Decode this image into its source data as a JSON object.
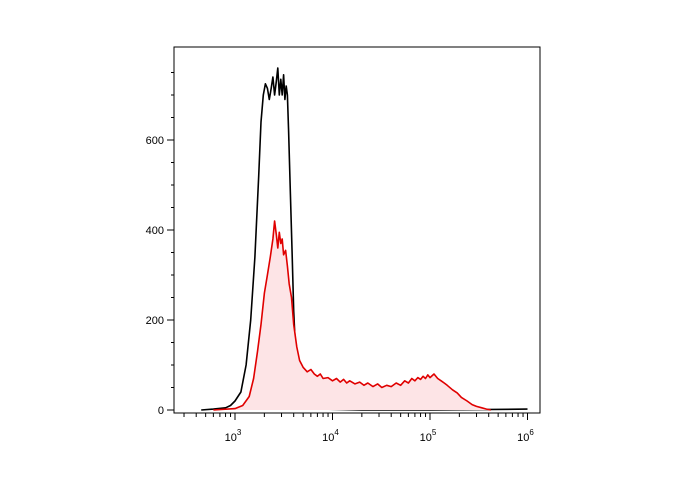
{
  "chart_data": {
    "type": "area",
    "title": "",
    "xlabel": "",
    "ylabel": "",
    "x_scale": "log",
    "xlim": [
      300,
      1500000
    ],
    "ylim": [
      0,
      760
    ],
    "grid": false,
    "y_ticks": [
      {
        "value": 0,
        "label": "0"
      },
      {
        "value": 200,
        "label": "200"
      },
      {
        "value": 400,
        "label": "400"
      },
      {
        "value": 600,
        "label": "600"
      }
    ],
    "x_ticks": [
      {
        "value": 1000,
        "base": "10",
        "exp": "3"
      },
      {
        "value": 10000,
        "base": "10",
        "exp": "4"
      },
      {
        "value": 100000,
        "base": "10",
        "exp": "5"
      },
      {
        "value": 1000000,
        "base": "10",
        "exp": "6"
      }
    ],
    "series": [
      {
        "color": "#000000",
        "fill": "none",
        "points": [
          [
            450,
            0
          ],
          [
            600,
            2
          ],
          [
            800,
            5
          ],
          [
            900,
            10
          ],
          [
            1000,
            20
          ],
          [
            1150,
            40
          ],
          [
            1300,
            100
          ],
          [
            1450,
            200
          ],
          [
            1600,
            340
          ],
          [
            1750,
            520
          ],
          [
            1850,
            640
          ],
          [
            1950,
            700
          ],
          [
            2050,
            725
          ],
          [
            2150,
            715
          ],
          [
            2250,
            690
          ],
          [
            2350,
            715
          ],
          [
            2450,
            740
          ],
          [
            2550,
            700
          ],
          [
            2650,
            730
          ],
          [
            2750,
            760
          ],
          [
            2850,
            700
          ],
          [
            2950,
            735
          ],
          [
            3050,
            700
          ],
          [
            3150,
            745
          ],
          [
            3250,
            690
          ],
          [
            3350,
            720
          ],
          [
            3450,
            700
          ],
          [
            3550,
            620
          ],
          [
            3700,
            480
          ],
          [
            3850,
            350
          ],
          [
            4000,
            220
          ],
          [
            4200,
            120
          ],
          [
            4500,
            60
          ],
          [
            4800,
            25
          ],
          [
            5200,
            10
          ],
          [
            6000,
            4
          ],
          [
            8000,
            2
          ],
          [
            20000,
            0
          ],
          [
            100000,
            0
          ],
          [
            1000000,
            2
          ]
        ]
      },
      {
        "color": "#e00000",
        "fill": "#fde4e6",
        "points": [
          [
            600,
            0
          ],
          [
            1000,
            3
          ],
          [
            1200,
            10
          ],
          [
            1400,
            30
          ],
          [
            1550,
            70
          ],
          [
            1700,
            130
          ],
          [
            1850,
            190
          ],
          [
            2000,
            260
          ],
          [
            2150,
            300
          ],
          [
            2300,
            340
          ],
          [
            2450,
            380
          ],
          [
            2550,
            420
          ],
          [
            2650,
            390
          ],
          [
            2750,
            360
          ],
          [
            2850,
            395
          ],
          [
            2950,
            370
          ],
          [
            3050,
            380
          ],
          [
            3150,
            345
          ],
          [
            3300,
            355
          ],
          [
            3450,
            320
          ],
          [
            3600,
            280
          ],
          [
            3800,
            250
          ],
          [
            4000,
            190
          ],
          [
            4300,
            140
          ],
          [
            4600,
            110
          ],
          [
            5000,
            95
          ],
          [
            5500,
            85
          ],
          [
            6000,
            90
          ],
          [
            6500,
            80
          ],
          [
            7000,
            75
          ],
          [
            7500,
            80
          ],
          [
            8000,
            70
          ],
          [
            9000,
            72
          ],
          [
            10000,
            65
          ],
          [
            11000,
            70
          ],
          [
            12000,
            62
          ],
          [
            13000,
            68
          ],
          [
            14000,
            60
          ],
          [
            15000,
            65
          ],
          [
            17000,
            58
          ],
          [
            19000,
            62
          ],
          [
            21000,
            55
          ],
          [
            23000,
            60
          ],
          [
            26000,
            52
          ],
          [
            29000,
            58
          ],
          [
            32000,
            50
          ],
          [
            36000,
            55
          ],
          [
            40000,
            52
          ],
          [
            45000,
            60
          ],
          [
            50000,
            55
          ],
          [
            55000,
            65
          ],
          [
            60000,
            60
          ],
          [
            65000,
            70
          ],
          [
            70000,
            65
          ],
          [
            75000,
            72
          ],
          [
            80000,
            68
          ],
          [
            85000,
            75
          ],
          [
            90000,
            70
          ],
          [
            95000,
            78
          ],
          [
            100000,
            72
          ],
          [
            110000,
            80
          ],
          [
            120000,
            70
          ],
          [
            130000,
            65
          ],
          [
            140000,
            60
          ],
          [
            150000,
            55
          ],
          [
            170000,
            45
          ],
          [
            190000,
            38
          ],
          [
            210000,
            28
          ],
          [
            240000,
            20
          ],
          [
            270000,
            12
          ],
          [
            300000,
            8
          ],
          [
            340000,
            5
          ],
          [
            380000,
            2
          ],
          [
            420000,
            0
          ]
        ]
      }
    ]
  }
}
